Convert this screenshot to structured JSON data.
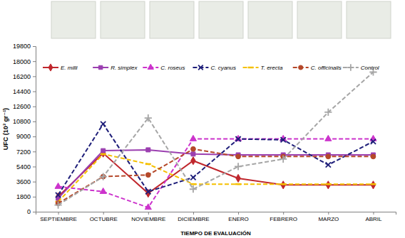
{
  "chart_data": {
    "type": "line",
    "x_label": "TIEMPO DE EVALUACIÓN",
    "y_label": "UFC (10³ gr⁻¹)",
    "categories": [
      "SEPTIEMBRE",
      "OCTUBRE",
      "NOVIEMBRE",
      "DICIEMBRE",
      "ENERO",
      "FEBRERO",
      "MARZO",
      "ABRIL"
    ],
    "series": [
      {
        "name": "E. milli",
        "color": "#c0272d",
        "marker": "diamond",
        "line_style": "solid",
        "values": [
          1800,
          7000,
          2200,
          6100,
          4000,
          3200,
          3200,
          3200
        ]
      },
      {
        "name": "R. simplex",
        "color": "#9b3fb0",
        "marker": "square",
        "line_style": "solid",
        "values": [
          1600,
          7300,
          7400,
          6900,
          6800,
          6800,
          6800,
          6800
        ]
      },
      {
        "name": "C. roseus",
        "color": "#cc33cc",
        "marker": "triangle",
        "line_style": "dashed",
        "values": [
          3000,
          2400,
          500,
          8700,
          8700,
          8700,
          8700,
          8700
        ]
      },
      {
        "name": "C. cyanus",
        "color": "#1f1f7a",
        "marker": "x",
        "line_style": "dashed",
        "values": [
          2000,
          10500,
          2400,
          4100,
          8700,
          8600,
          5600,
          8400
        ]
      },
      {
        "name": "T. erecta",
        "color": "#f5c000",
        "marker": "dash",
        "line_style": "dashed",
        "values": [
          1200,
          6900,
          5700,
          3300,
          3300,
          3300,
          3300,
          3300
        ]
      },
      {
        "name": "C. officinalis",
        "color": "#b5482a",
        "marker": "circle",
        "line_style": "dashed",
        "values": [
          1000,
          4200,
          4400,
          7500,
          6600,
          6600,
          6600,
          6600
        ]
      },
      {
        "name": "Control",
        "color": "#a6a6a6",
        "marker": "plus",
        "line_style": "dashed",
        "values": [
          800,
          4200,
          11200,
          2700,
          5400,
          6300,
          11900,
          16700
        ]
      }
    ],
    "ylim": [
      0,
      19800
    ],
    "yticks": [
      0,
      1800,
      3600,
      5400,
      7200,
      9000,
      10800,
      12600,
      14400,
      16200,
      18000,
      19800
    ],
    "grid": false,
    "legend": "top"
  }
}
